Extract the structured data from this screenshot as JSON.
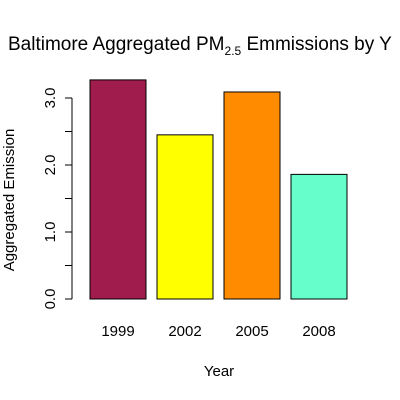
{
  "chart_data": {
    "type": "bar",
    "title": {
      "main": "Baltimore Aggregated PM",
      "subscript": "2.5",
      "rest": " Emmissions by Y"
    },
    "xlabel": "Year",
    "ylabel": "Aggregated Emission",
    "categories": [
      "1999",
      "2002",
      "2005",
      "2008"
    ],
    "values": [
      3.27,
      2.45,
      3.09,
      1.86
    ],
    "colors": [
      "#a01c4c",
      "#ffff00",
      "#ff8c00",
      "#66ffcc"
    ],
    "ylim": [
      0,
      3.3
    ],
    "yticks": [
      0,
      0.5,
      1.0,
      1.5,
      2.0,
      2.5,
      3.0
    ],
    "ytick_labels": [
      "0.0",
      "",
      "1.0",
      "",
      "2.0",
      "",
      "3.0"
    ],
    "grid": false,
    "legend": "none"
  }
}
